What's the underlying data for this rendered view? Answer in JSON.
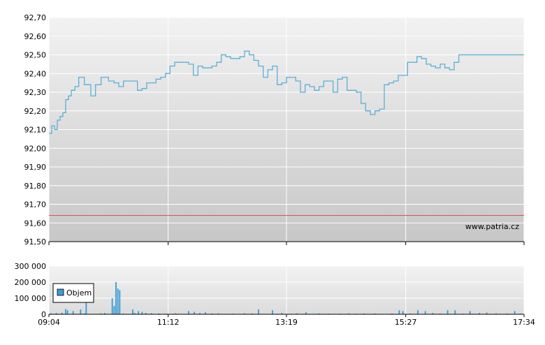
{
  "chart_data": [
    {
      "type": "line",
      "panel": "price",
      "title": "",
      "xlabel": "",
      "ylabel": "",
      "ylim": [
        91.5,
        92.7
      ],
      "y_ticks": [
        "92,70",
        "92,60",
        "92,50",
        "92,40",
        "92,30",
        "92,20",
        "92,10",
        "92,00",
        "91,90",
        "91,80",
        "91,70",
        "91,60",
        "91,50"
      ],
      "y_tick_values": [
        92.7,
        92.6,
        92.5,
        92.4,
        92.3,
        92.2,
        92.1,
        92.0,
        91.9,
        91.8,
        91.7,
        91.6,
        91.5
      ],
      "x_ticks": [
        "09:04",
        "11:12",
        "13:19",
        "15:27",
        "17:34"
      ],
      "x_tick_minutes": [
        0,
        128,
        255,
        383,
        510
      ],
      "reference_line": {
        "value": 91.64,
        "color": "#d9534f"
      },
      "watermark": "www.patria.cz",
      "grid": true,
      "line_color": "#5bb0d6",
      "series": [
        {
          "x": [
            0,
            3,
            6,
            9,
            12,
            15,
            18,
            21,
            24,
            28,
            32,
            36,
            38,
            40,
            42,
            45,
            50,
            56,
            60,
            64,
            70,
            75,
            80,
            85,
            88,
            91,
            95,
            100,
            105,
            110,
            115,
            120,
            125,
            130,
            135,
            140,
            145,
            150,
            155,
            160,
            165,
            170,
            175,
            180,
            185,
            190,
            195,
            200,
            205,
            210,
            215,
            220,
            225,
            230,
            235,
            240,
            245,
            250,
            255,
            260,
            265,
            270,
            275,
            280,
            285,
            290,
            295,
            300,
            305,
            310,
            315,
            320,
            325,
            330,
            335,
            340,
            345,
            350,
            355,
            360,
            365,
            370,
            375,
            380,
            385,
            390,
            395,
            400,
            405,
            410,
            415,
            420,
            425,
            430,
            435,
            440,
            445,
            450,
            455,
            460,
            465,
            470,
            475,
            480,
            485,
            490,
            495,
            500,
            505,
            510
          ],
          "values": [
            92.08,
            92.12,
            92.1,
            92.15,
            92.17,
            92.19,
            92.26,
            92.28,
            92.31,
            92.33,
            92.38,
            92.38,
            92.34,
            92.34,
            92.34,
            92.28,
            92.34,
            92.38,
            92.38,
            92.36,
            92.35,
            92.33,
            92.36,
            92.36,
            92.36,
            92.36,
            92.31,
            92.32,
            92.35,
            92.35,
            92.37,
            92.38,
            92.4,
            92.44,
            92.46,
            92.46,
            92.46,
            92.45,
            92.39,
            92.44,
            92.43,
            92.43,
            92.44,
            92.46,
            92.5,
            92.49,
            92.48,
            92.48,
            92.49,
            92.52,
            92.5,
            92.47,
            92.44,
            92.38,
            92.42,
            92.44,
            92.34,
            92.35,
            92.38,
            92.38,
            92.36,
            92.3,
            92.34,
            92.33,
            92.31,
            92.33,
            92.36,
            92.36,
            92.3,
            92.37,
            92.38,
            92.31,
            92.31,
            92.3,
            92.24,
            92.2,
            92.18,
            92.2,
            92.21,
            92.34,
            92.35,
            92.36,
            92.39,
            92.39,
            92.46,
            92.46,
            92.49,
            92.48,
            92.45,
            92.44,
            92.43,
            92.45,
            92.43,
            92.42,
            92.46,
            92.5,
            92.5,
            92.5,
            92.5,
            92.5,
            92.5,
            92.5,
            92.5,
            92.5,
            92.5,
            92.5,
            92.5,
            92.5,
            92.5,
            92.5
          ]
        }
      ]
    },
    {
      "type": "bar",
      "panel": "volume",
      "title": "",
      "ylim": [
        0,
        300000
      ],
      "y_ticks": [
        "300 000",
        "200 000",
        "100 000",
        "0"
      ],
      "y_tick_values": [
        300000,
        200000,
        100000,
        0
      ],
      "x_ticks": [
        "09:04",
        "11:12",
        "13:19",
        "15:27",
        "17:34"
      ],
      "x_tick_minutes": [
        0,
        128,
        255,
        383,
        510
      ],
      "legend": [
        {
          "label": "Objem",
          "color": "#3d9bd4"
        }
      ],
      "legend_position": "left",
      "grid": true,
      "series": [
        {
          "name": "Objem",
          "color": "#3d9bd4",
          "x": [
            2,
            8,
            14,
            18,
            20,
            26,
            30,
            34,
            38,
            40,
            56,
            60,
            68,
            70,
            72,
            74,
            76,
            80,
            90,
            92,
            96,
            100,
            104,
            110,
            118,
            126,
            136,
            150,
            156,
            162,
            168,
            175,
            182,
            198,
            210,
            218,
            225,
            240,
            250,
            266,
            276,
            290,
            300,
            312,
            322,
            330,
            338,
            350,
            368,
            376,
            380,
            388,
            396,
            404,
            412,
            420,
            428,
            436,
            444,
            452,
            462,
            470,
            480,
            492,
            500,
            506
          ],
          "values": [
            6000,
            8000,
            10000,
            32000,
            25000,
            20000,
            2000,
            30000,
            5000,
            120000,
            6000,
            8000,
            100000,
            52000,
            200000,
            160000,
            150000,
            4000,
            30000,
            8000,
            20000,
            15000,
            8000,
            6000,
            5000,
            4000,
            6000,
            20000,
            15000,
            8000,
            12000,
            5000,
            6000,
            4000,
            6000,
            5000,
            30000,
            25000,
            8000,
            6000,
            12000,
            5000,
            4000,
            4000,
            6000,
            4000,
            5000,
            5000,
            5000,
            25000,
            20000,
            4000,
            25000,
            20000,
            8000,
            4000,
            25000,
            25000,
            4000,
            20000,
            8000,
            10000,
            6000,
            5000,
            20000,
            4000
          ]
        }
      ]
    }
  ]
}
